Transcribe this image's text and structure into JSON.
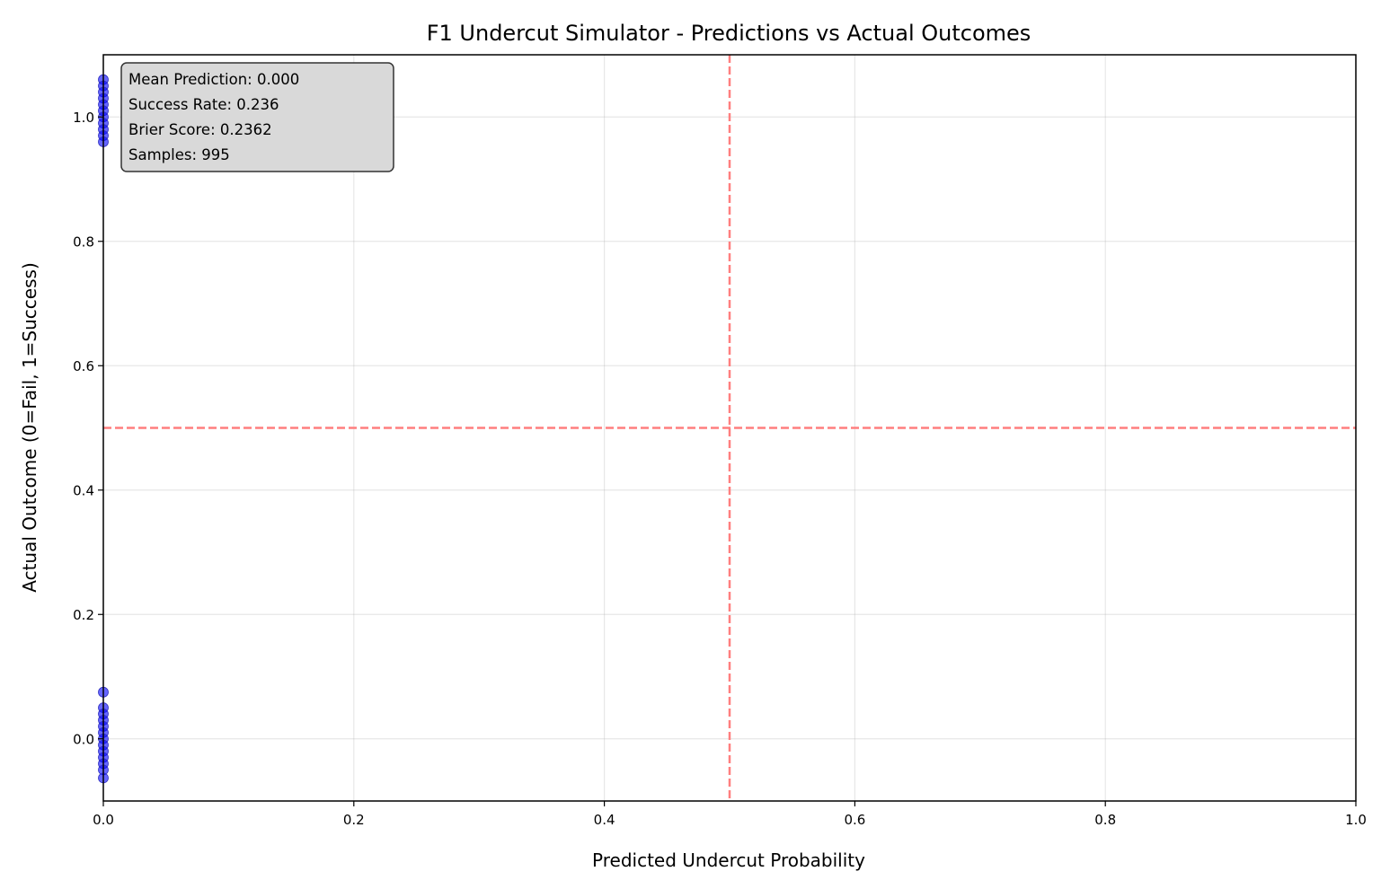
{
  "chart_data": {
    "type": "scatter",
    "title": "F1 Undercut Simulator - Predictions vs Actual Outcomes",
    "xlabel": "Predicted Undercut Probability",
    "ylabel": "Actual Outcome (0=Fail, 1=Success)",
    "xlim": [
      0.0,
      1.0
    ],
    "ylim": [
      -0.1,
      1.1
    ],
    "x_ticks": [
      0.0,
      0.2,
      0.4,
      0.6,
      0.8,
      1.0
    ],
    "x_tick_labels": [
      "0.0",
      "0.2",
      "0.4",
      "0.6",
      "0.8",
      "1.0"
    ],
    "y_ticks": [
      0.0,
      0.2,
      0.4,
      0.6,
      0.8,
      1.0
    ],
    "y_tick_labels": [
      "0.0",
      "0.2",
      "0.4",
      "0.6",
      "0.8",
      "1.0"
    ],
    "grid": true,
    "point_color": "#0000ff",
    "reference_line_color": "#ff7f7f",
    "reference_lines": [
      {
        "orientation": "vertical",
        "value": 0.5
      },
      {
        "orientation": "horizontal",
        "value": 0.5
      }
    ],
    "points": [
      {
        "x": 0.0,
        "y": 1.06
      },
      {
        "x": 0.0,
        "y": 1.05
      },
      {
        "x": 0.0,
        "y": 1.04
      },
      {
        "x": 0.0,
        "y": 1.03
      },
      {
        "x": 0.0,
        "y": 1.02
      },
      {
        "x": 0.0,
        "y": 1.01
      },
      {
        "x": 0.0,
        "y": 1.0
      },
      {
        "x": 0.0,
        "y": 0.99
      },
      {
        "x": 0.0,
        "y": 0.98
      },
      {
        "x": 0.0,
        "y": 0.97
      },
      {
        "x": 0.0,
        "y": 0.96
      },
      {
        "x": 0.0,
        "y": 0.075
      },
      {
        "x": 0.0,
        "y": 0.05
      },
      {
        "x": 0.0,
        "y": 0.04
      },
      {
        "x": 0.0,
        "y": 0.03
      },
      {
        "x": 0.0,
        "y": 0.02
      },
      {
        "x": 0.0,
        "y": 0.01
      },
      {
        "x": 0.0,
        "y": 0.0
      },
      {
        "x": 0.0,
        "y": -0.01
      },
      {
        "x": 0.0,
        "y": -0.02
      },
      {
        "x": 0.0,
        "y": -0.03
      },
      {
        "x": 0.0,
        "y": -0.04
      },
      {
        "x": 0.0,
        "y": -0.05
      },
      {
        "x": 0.0,
        "y": -0.063
      }
    ],
    "stats_box": {
      "lines": [
        "Mean Prediction: 0.000",
        "Success Rate: 0.236",
        "Brier Score: 0.2362",
        "Samples: 995"
      ],
      "placement": "top-left"
    }
  }
}
